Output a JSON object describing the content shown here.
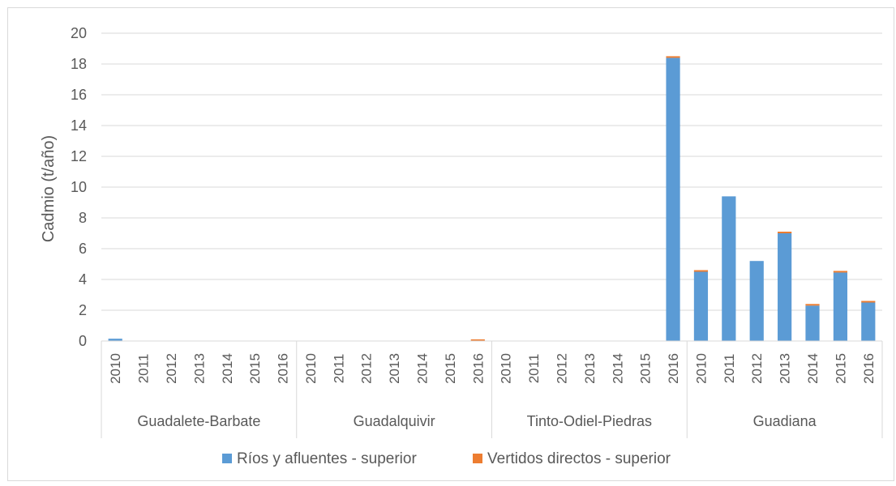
{
  "chart_data": {
    "type": "bar",
    "stacked": true,
    "ylabel": "Cadmio (t/año)",
    "ylim": [
      0,
      20
    ],
    "yticks": [
      "0",
      "2",
      "4",
      "6",
      "8",
      "10",
      "12",
      "14",
      "16",
      "18",
      "20"
    ],
    "grid": true,
    "legend_position": "bottom",
    "groups": [
      {
        "name": "Guadalete-Barbate",
        "categories": [
          "2010",
          "2011",
          "2012",
          "2013",
          "2014",
          "2015",
          "2016"
        ]
      },
      {
        "name": "Guadalquivir",
        "categories": [
          "2010",
          "2011",
          "2012",
          "2013",
          "2014",
          "2015",
          "2016"
        ]
      },
      {
        "name": "Tinto-Odiel-Piedras",
        "categories": [
          "2010",
          "2011",
          "2012",
          "2013",
          "2014",
          "2015",
          "2016"
        ]
      },
      {
        "name": "Guadiana",
        "categories": [
          "2010",
          "2011",
          "2012",
          "2013",
          "2014",
          "2015",
          "2016"
        ]
      }
    ],
    "series": [
      {
        "name": "Ríos y afluentes - superior",
        "color": "#5b9bd5",
        "values": [
          0.15,
          0,
          0,
          0,
          0,
          0,
          0,
          0,
          0,
          0,
          0,
          0,
          0,
          0,
          0,
          0,
          0,
          0,
          0,
          0,
          18.4,
          4.5,
          9.4,
          5.2,
          7.0,
          2.3,
          4.45,
          2.5
        ]
      },
      {
        "name": "Vertidos directos - superior",
        "color": "#ed7d31",
        "values": [
          0,
          0,
          0,
          0,
          0,
          0,
          0,
          0,
          0,
          0,
          0,
          0,
          0,
          0.08,
          0,
          0,
          0,
          0,
          0,
          0,
          0.08,
          0.08,
          0,
          0,
          0.08,
          0.08,
          0.08,
          0.08
        ]
      }
    ]
  }
}
